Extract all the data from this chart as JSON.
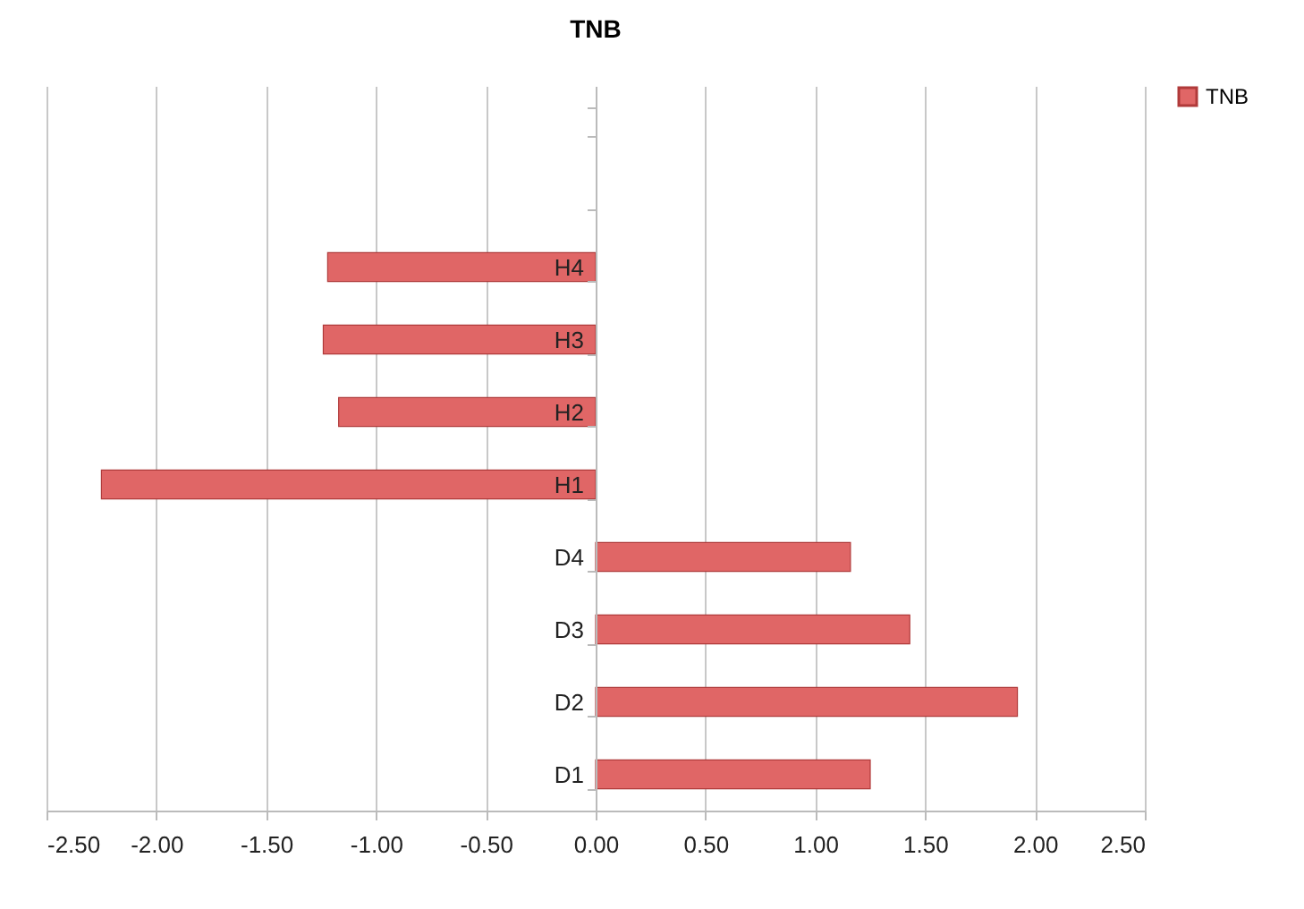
{
  "chart_data": {
    "type": "bar",
    "orientation": "horizontal",
    "title": "TNB",
    "categories": [
      null,
      null,
      "H4",
      "H3",
      "H2",
      "H1",
      "D4",
      "D3",
      "D2",
      "D1"
    ],
    "series": [
      {
        "name": "TNB",
        "color": "#e06666",
        "values": [
          null,
          null,
          -1.22,
          -1.24,
          -1.17,
          -2.25,
          1.16,
          1.43,
          1.92,
          1.25
        ]
      }
    ],
    "xlim": [
      -2.5,
      2.5
    ],
    "xticks": [
      {
        "value": -2.5,
        "label": "-2.50"
      },
      {
        "value": -2,
        "label": "-2.00"
      },
      {
        "value": -1.5,
        "label": "-1.50"
      },
      {
        "value": -1,
        "label": "-1.00"
      },
      {
        "value": -0.5,
        "label": "-0.50"
      },
      {
        "value": 0,
        "label": "0.00"
      },
      {
        "value": 0.5,
        "label": "0.50"
      },
      {
        "value": 1,
        "label": "1.00"
      },
      {
        "value": 1.5,
        "label": "1.50"
      },
      {
        "value": 2,
        "label": "2.00"
      },
      {
        "value": 2.5,
        "label": "2.50"
      }
    ],
    "grid": "x",
    "legend": "right"
  }
}
